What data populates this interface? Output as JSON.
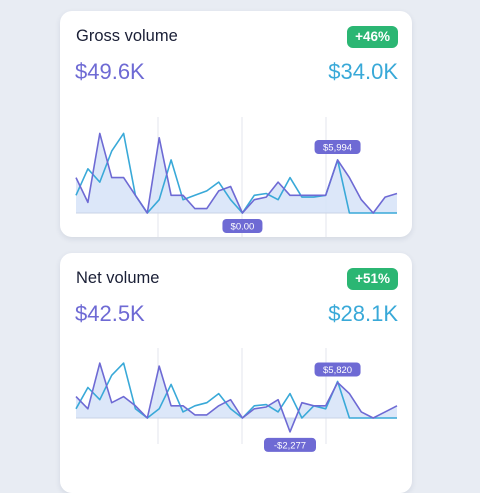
{
  "colors": {
    "primary": "#6e6ad4",
    "secondary": "#39a9d8",
    "positive_badge": "#2bb673",
    "area_fill": "#d6e3f8"
  },
  "cards": [
    {
      "title": "Gross volume",
      "change": "+46%",
      "current_value": "$49.6K",
      "previous_value": "$34.0K",
      "chart_data": {
        "type": "line",
        "series": [
          {
            "values": [
              4000,
              1200,
              9000,
              4000,
              4000,
              2000,
              0,
              8500,
              2000,
              2000,
              500,
              500,
              2500,
              3000,
              0,
              1500,
              1800,
              3500,
              2000,
              2000,
              2000,
              2000,
              5994,
              4000,
              1500,
              0,
              1800,
              2200
            ]
          },
          {
            "values": [
              2000,
              5000,
              3500,
              7000,
              9000,
              2000,
              0,
              1500,
              6000,
              1500,
              2000,
              2500,
              3500,
              1500,
              0,
              2000,
              2200,
              1500,
              4000,
              1800,
              1800,
              2000,
              6000,
              0,
              0,
              0,
              0,
              0
            ]
          }
        ],
        "tooltips": [
          {
            "label": "$5,994",
            "point": 22
          },
          {
            "label": "$0.00",
            "point": 14
          }
        ]
      }
    },
    {
      "title": "Net volume",
      "change": "+51%",
      "current_value": "$42.5K",
      "previous_value": "$28.1K",
      "chart_data": {
        "type": "line",
        "series": [
          {
            "values": [
              3500,
              1500,
              9000,
              2500,
              3500,
              2000,
              0,
              8500,
              2000,
              2000,
              500,
              500,
              2000,
              3000,
              0,
              1500,
              1800,
              3000,
              -2277,
              2500,
              2000,
              2000,
              5820,
              4000,
              1000,
              0,
              1000,
              2000
            ]
          },
          {
            "values": [
              1500,
              5000,
              3000,
              7000,
              9000,
              1500,
              0,
              1500,
              5500,
              1000,
              2000,
              2500,
              4000,
              1500,
              0,
              2000,
              2200,
              1000,
              4000,
              0,
              2000,
              1500,
              6000,
              0,
              0,
              0,
              0,
              0
            ]
          }
        ],
        "tooltips": [
          {
            "label": "$5,820",
            "point": 22
          },
          {
            "label": "-$2,277",
            "point": 18
          }
        ]
      }
    }
  ]
}
